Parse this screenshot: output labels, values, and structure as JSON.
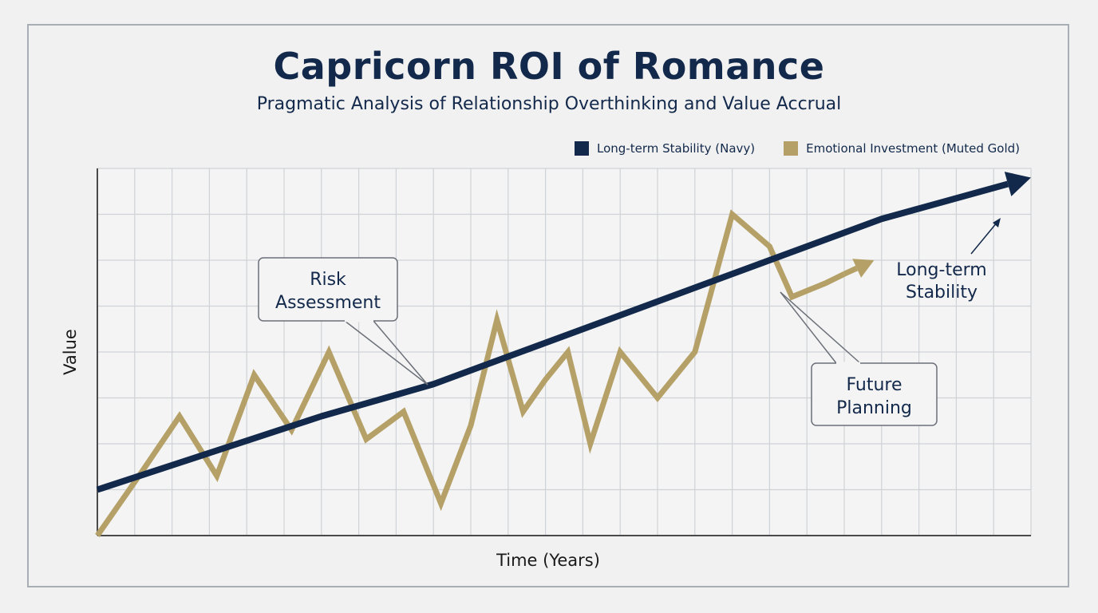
{
  "colors": {
    "navy": "#13294b",
    "gold": "#b5a168",
    "grid": "#cfd2d6",
    "axis": "#4a4a4a"
  },
  "chart_data": {
    "type": "line",
    "title": "Capricorn ROI of Romance",
    "subtitle": "Pragmatic Analysis of Relationship Overthinking and Value Accrual",
    "xlabel": "Time (Years)",
    "ylabel": "Value",
    "xlim": [
      0,
      25
    ],
    "ylim": [
      0,
      8
    ],
    "grid": true,
    "legend_position": "top-right",
    "series": [
      {
        "name": "Long-term Stability (Navy)",
        "color": "#13294b",
        "style": "trend-arrow",
        "x": [
          0,
          3,
          6,
          9,
          12,
          15,
          18,
          21,
          25
        ],
        "y": [
          1.0,
          1.8,
          2.6,
          3.3,
          4.2,
          5.1,
          6.0,
          6.9,
          7.8
        ]
      },
      {
        "name": "Emotional Investment (Muted Gold)",
        "color": "#b5a168",
        "style": "zigzag",
        "x": [
          0,
          1.2,
          2.2,
          3.2,
          4.2,
          5.2,
          6.2,
          7.2,
          8.2,
          9.2,
          10.0,
          10.7,
          11.4,
          12.0,
          12.6,
          13.2,
          14.0,
          15.0,
          16.0,
          17.0,
          18.0,
          18.6,
          19.5,
          20.0,
          20.8
        ],
        "y": [
          0.0,
          1.4,
          2.6,
          1.3,
          3.5,
          2.3,
          4.0,
          2.1,
          2.7,
          0.7,
          2.4,
          4.7,
          2.7,
          3.4,
          4.0,
          2.0,
          4.0,
          3.0,
          4.0,
          7.0,
          6.3,
          5.2,
          5.5,
          5.7,
          6.0
        ]
      }
    ],
    "annotations": [
      "Risk Assessment",
      "Future Planning",
      "Long-term Stability"
    ]
  },
  "callouts": {
    "risk": [
      "Risk",
      "Assessment"
    ],
    "future": [
      "Future",
      "Planning"
    ],
    "stability": [
      "Long-term",
      "Stability"
    ]
  }
}
